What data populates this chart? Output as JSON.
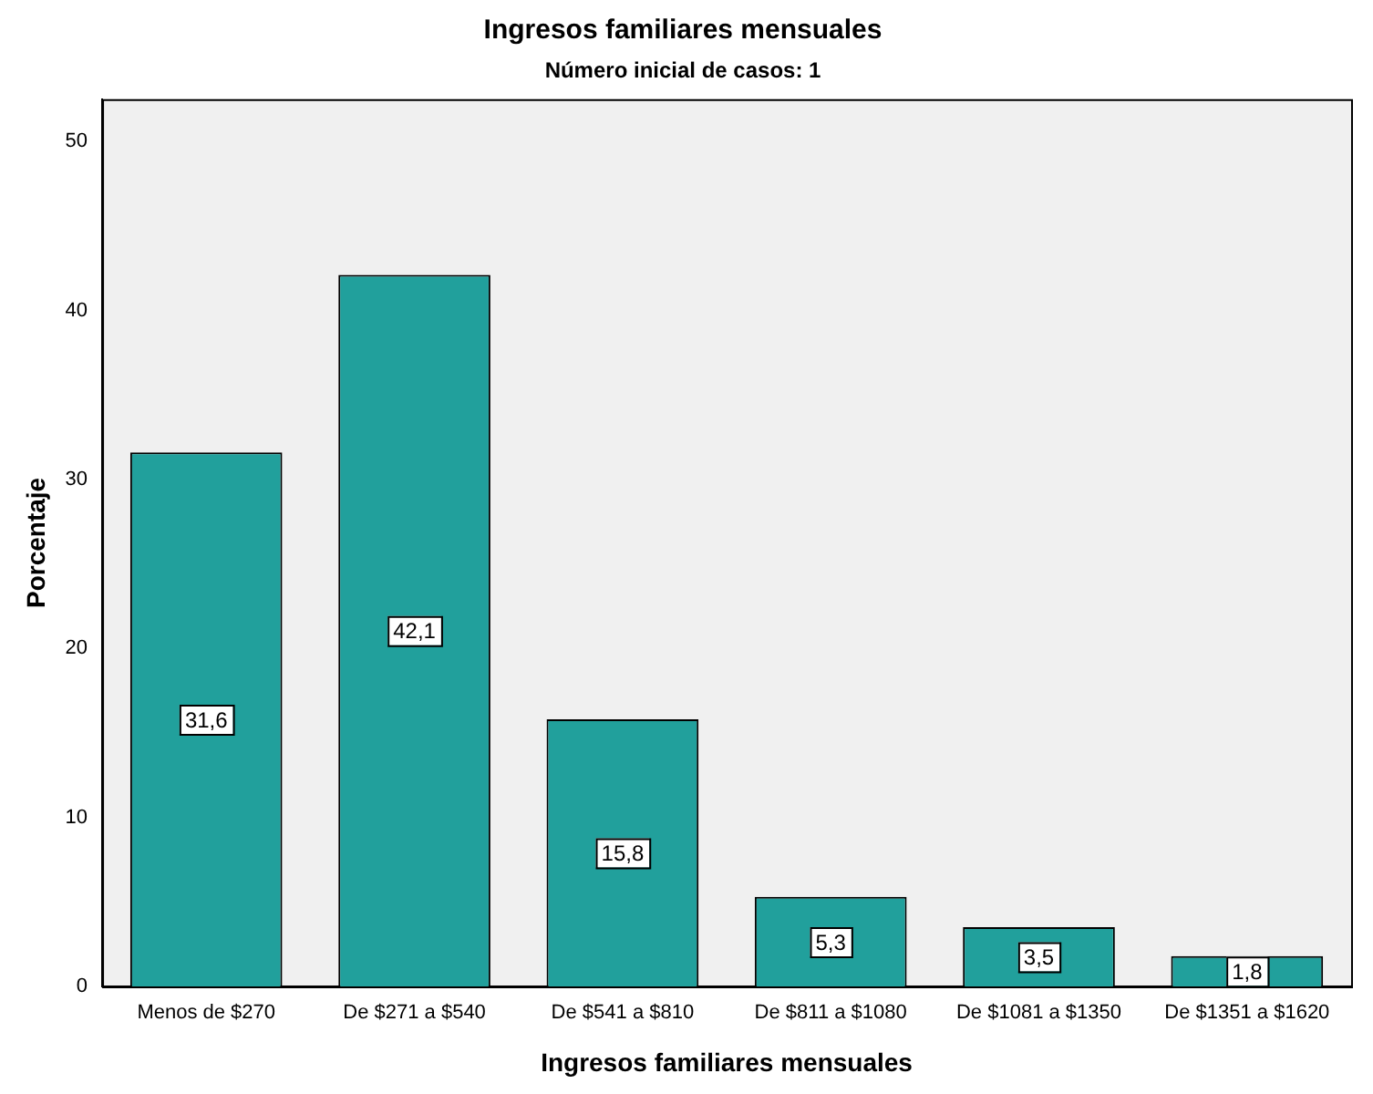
{
  "chart_data": {
    "type": "bar",
    "title": "Ingresos familiares mensuales",
    "subtitle": "Número inicial de casos: 1",
    "xlabel": "Ingresos familiares mensuales",
    "ylabel": "Porcentaje",
    "categories": [
      "Menos de $270",
      "De $271 a $540",
      "De $541 a $810",
      "De $811 a $1080",
      "De $1081 a $1350",
      "De $1351 a $1620"
    ],
    "values": [
      31.6,
      42.1,
      15.8,
      5.3,
      3.5,
      1.8
    ],
    "value_labels": [
      "31,6",
      "42,1",
      "15,8",
      "5,3",
      "3,5",
      "1,8"
    ],
    "color": "#21a09c",
    "ylim": [
      0,
      52.5
    ],
    "yticks": [
      0,
      10,
      20,
      30,
      40,
      50
    ],
    "grid": false,
    "legend": false
  }
}
